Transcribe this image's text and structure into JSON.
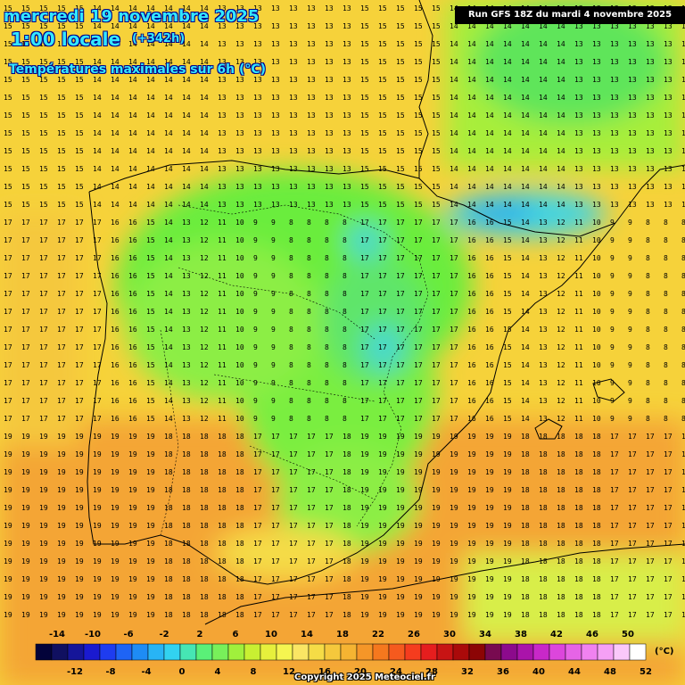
{
  "header": {
    "date": "mercredi 19 novembre 2025",
    "time": "1:00 locale",
    "offset": "(+342h)",
    "variable": "Températures maximales sur 6h (°C)"
  },
  "run_info": "Run GFS 18Z du mardi 4 novembre 2025",
  "copyright": "Copyright 2025 Meteociel.fr",
  "legend": {
    "unit": "(°C)",
    "top_labels": [
      "-14",
      "-10",
      "-6",
      "-2",
      "2",
      "6",
      "10",
      "14",
      "18",
      "22",
      "26",
      "30",
      "34",
      "38",
      "42",
      "46",
      "50"
    ],
    "bottom_labels": [
      "-12",
      "-8",
      "-4",
      "0",
      "4",
      "8",
      "12",
      "16",
      "20",
      "24",
      "28",
      "32",
      "36",
      "40",
      "44",
      "48",
      "52"
    ],
    "colors": [
      "#03033a",
      "#101060",
      "#151599",
      "#1a1ad0",
      "#1e3cf0",
      "#1e64f5",
      "#1e8cf5",
      "#28b4f5",
      "#32d2f0",
      "#46e6b4",
      "#5af078",
      "#78f05a",
      "#a0f03c",
      "#c8f032",
      "#e6f03c",
      "#f5f550",
      "#fae664",
      "#f5dc46",
      "#f5c83c",
      "#f5b432",
      "#f59628",
      "#f5781e",
      "#f55a1e",
      "#f53c1e",
      "#e61e1e",
      "#c81414",
      "#aa0a0a",
      "#8c0505",
      "#780a50",
      "#8c0a8c",
      "#aa14aa",
      "#c828c8",
      "#dc46dc",
      "#e664e6",
      "#f082f0",
      "#f5a0f5",
      "#fac8fa",
      "#ffffff"
    ]
  },
  "colors": {
    "title": "#33e8ff",
    "title_outline": "#00008a",
    "sea": "#f6d23a",
    "land_cold": "#6aed3c"
  },
  "map": {
    "region": "Péninsule Ibérique",
    "sample_rows": [
      {
        "row": "top",
        "values": [
          "15",
          "15",
          "15",
          "15",
          "15",
          "14",
          "14",
          "14",
          "14",
          "14",
          "14",
          "14",
          "13",
          "13",
          "13",
          "13",
          "13",
          "13",
          "13",
          "13"
        ]
      },
      {
        "row": "middle",
        "values": [
          "17",
          "17",
          "17",
          "17",
          "17",
          "17",
          "16",
          "16",
          "15",
          "14",
          "13",
          "12",
          "11",
          "10",
          "9",
          "9",
          "8",
          "8",
          "8",
          "8"
        ]
      },
      {
        "row": "bottom",
        "values": [
          "19",
          "19",
          "19",
          "19",
          "19",
          "19",
          "19",
          "19",
          "19",
          "18",
          "18",
          "18",
          "18",
          "18",
          "17",
          "17",
          "17",
          "17",
          "17",
          "18"
        ]
      }
    ]
  }
}
